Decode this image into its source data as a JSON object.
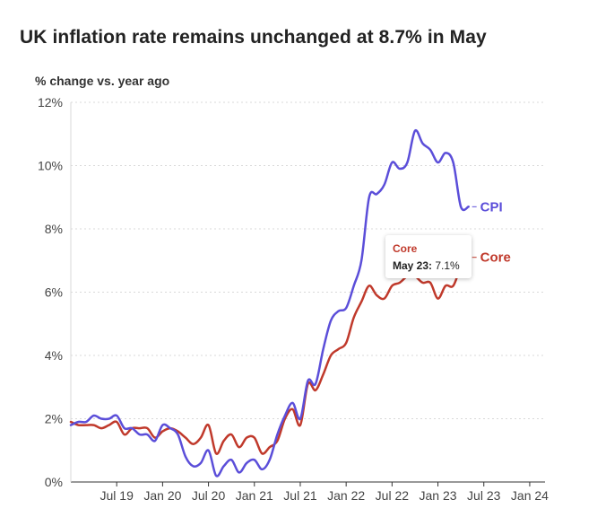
{
  "header": {
    "title": "UK inflation rate remains unchanged at 8.7% in May",
    "subtitle": "% change vs. year ago"
  },
  "colors": {
    "cpi": "#5b4ed9",
    "core": "#c0392b",
    "grid": "#d9d9d9",
    "axis": "#333333"
  },
  "tooltip": {
    "series": "Core",
    "date": "May 23:",
    "value": "7.1%"
  },
  "chart_data": {
    "type": "line",
    "title": "UK inflation rate remains unchanged at 8.7% in May",
    "ylabel": "% change vs. year ago",
    "xlabel": "",
    "ylim": [
      0,
      12
    ],
    "xlim": [
      "2019-01",
      "2024-03"
    ],
    "grid": "horizontal dotted",
    "y_ticks": [
      0,
      2,
      4,
      6,
      8,
      10,
      12
    ],
    "y_tick_labels": [
      "0%",
      "2%",
      "4%",
      "6%",
      "8%",
      "10%",
      "12%"
    ],
    "x_ticks": [
      "2019-07",
      "2020-01",
      "2020-07",
      "2021-01",
      "2021-07",
      "2022-01",
      "2022-07",
      "2023-01",
      "2023-07",
      "2024-01"
    ],
    "x_tick_labels": [
      "Jul 19",
      "Jan 20",
      "Jul 20",
      "Jan 21",
      "Jul 21",
      "Jan 22",
      "Jul 22",
      "Jan 23",
      "Jul 23",
      "Jan 24"
    ],
    "x": [
      "2019-01",
      "2019-02",
      "2019-03",
      "2019-04",
      "2019-05",
      "2019-06",
      "2019-07",
      "2019-08",
      "2019-09",
      "2019-10",
      "2019-11",
      "2019-12",
      "2020-01",
      "2020-02",
      "2020-03",
      "2020-04",
      "2020-05",
      "2020-06",
      "2020-07",
      "2020-08",
      "2020-09",
      "2020-10",
      "2020-11",
      "2020-12",
      "2021-01",
      "2021-02",
      "2021-03",
      "2021-04",
      "2021-05",
      "2021-06",
      "2021-07",
      "2021-08",
      "2021-09",
      "2021-10",
      "2021-11",
      "2021-12",
      "2022-01",
      "2022-02",
      "2022-03",
      "2022-04",
      "2022-05",
      "2022-06",
      "2022-07",
      "2022-08",
      "2022-09",
      "2022-10",
      "2022-11",
      "2022-12",
      "2023-01",
      "2023-02",
      "2023-03",
      "2023-04",
      "2023-05"
    ],
    "series": [
      {
        "name": "CPI",
        "color": "#5b4ed9",
        "values": [
          1.8,
          1.9,
          1.9,
          2.1,
          2.0,
          2.0,
          2.1,
          1.7,
          1.7,
          1.5,
          1.5,
          1.3,
          1.8,
          1.7,
          1.5,
          0.8,
          0.5,
          0.6,
          1.0,
          0.2,
          0.5,
          0.7,
          0.3,
          0.6,
          0.7,
          0.4,
          0.7,
          1.5,
          2.1,
          2.5,
          2.0,
          3.2,
          3.1,
          4.2,
          5.1,
          5.4,
          5.5,
          6.2,
          7.0,
          9.0,
          9.1,
          9.4,
          10.1,
          9.9,
          10.1,
          11.1,
          10.7,
          10.5,
          10.1,
          10.4,
          10.1,
          8.7,
          8.7
        ]
      },
      {
        "name": "Core",
        "color": "#c0392b",
        "values": [
          1.9,
          1.8,
          1.8,
          1.8,
          1.7,
          1.8,
          1.9,
          1.5,
          1.7,
          1.7,
          1.7,
          1.4,
          1.6,
          1.7,
          1.6,
          1.4,
          1.2,
          1.4,
          1.8,
          0.9,
          1.3,
          1.5,
          1.1,
          1.4,
          1.4,
          0.9,
          1.1,
          1.3,
          2.0,
          2.3,
          1.8,
          3.1,
          2.9,
          3.4,
          4.0,
          4.2,
          4.4,
          5.2,
          5.7,
          6.2,
          5.9,
          5.8,
          6.2,
          6.3,
          6.5,
          6.5,
          6.3,
          6.3,
          5.8,
          6.2,
          6.2,
          6.8,
          7.1
        ]
      }
    ]
  }
}
